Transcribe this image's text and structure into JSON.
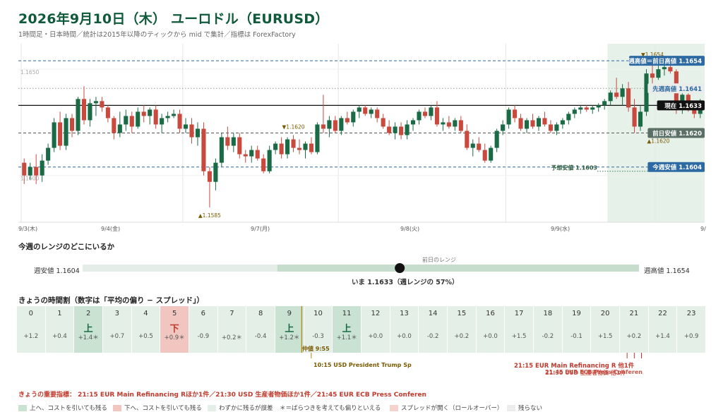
{
  "header": {
    "title": "2026年9月10日（木） ユーロドル（EURUSD）",
    "subtitle": "1時間足・日本時間／統計は2015年以降のティックから mid で集計／指標は ForexFactory"
  },
  "chart_data": {
    "type": "candlestick",
    "ylim": [
      1.1578,
      1.1662
    ],
    "y_tick_labels": [
      {
        "value": 1.165,
        "label": "1.1650"
      },
      {
        "value": 1.16,
        "label": "1.1600"
      }
    ],
    "x_tick_labels": [
      "9/3(木)",
      "9/4(金)",
      "9/7(月)",
      "9/8(火)",
      "9/9(水)",
      "9/"
    ],
    "colors": {
      "up": "#1a6b45",
      "down": "#c84a3e"
    },
    "levels": [
      {
        "label": "週高値＝前日高値 1.1654",
        "value": 1.1654,
        "style": "dashed",
        "color": "#2d6aa3"
      },
      {
        "label": "先週高値 1.1641",
        "value": 1.1641,
        "style": "dotted",
        "color": "#999"
      },
      {
        "label": "現在 1.1633",
        "value": 1.1633,
        "style": "solid",
        "color": "#111"
      },
      {
        "label": "前日安値 1.1620",
        "value": 1.162,
        "style": "dashed",
        "color": "#555"
      },
      {
        "label": "今週安値 1.1604",
        "value": 1.1604,
        "style": "dashed",
        "color": "#2d6aa3"
      }
    ],
    "forecast_low": {
      "label": "予想安値 1.1603",
      "value": 1.1603
    },
    "annotations": [
      {
        "label": "▲1.1585",
        "value": 1.1585,
        "index": 31
      },
      {
        "label": "▼1.1620",
        "value": 1.162,
        "index": 45
      },
      {
        "label": "▼1.1654",
        "value": 1.1654,
        "index": 105
      },
      {
        "label": "▲1.1620",
        "value": 1.162,
        "index": 106
      }
    ],
    "candles": [
      [
        1.1606,
        1.1608,
        1.1596,
        1.16
      ],
      [
        1.16,
        1.1606,
        1.1598,
        1.1604
      ],
      [
        1.1604,
        1.161,
        1.1596,
        1.16
      ],
      [
        1.16,
        1.161,
        1.1597,
        1.1607
      ],
      [
        1.1607,
        1.1615,
        1.1605,
        1.1613
      ],
      [
        1.1613,
        1.1627,
        1.1611,
        1.1625
      ],
      [
        1.1625,
        1.163,
        1.1612,
        1.1614
      ],
      [
        1.1614,
        1.1629,
        1.1612,
        1.1627
      ],
      [
        1.1627,
        1.1629,
        1.1618,
        1.1621
      ],
      [
        1.1621,
        1.1637,
        1.1619,
        1.1636
      ],
      [
        1.1636,
        1.1642,
        1.1624,
        1.1626
      ],
      [
        1.1626,
        1.1636,
        1.1623,
        1.1634
      ],
      [
        1.1634,
        1.1637,
        1.1628,
        1.1635
      ],
      [
        1.1635,
        1.1637,
        1.163,
        1.1632
      ],
      [
        1.1632,
        1.1633,
        1.1625,
        1.1627
      ],
      [
        1.1627,
        1.1628,
        1.1617,
        1.162
      ],
      [
        1.162,
        1.163,
        1.1618,
        1.1624
      ],
      [
        1.1624,
        1.1631,
        1.1621,
        1.1628
      ],
      [
        1.1628,
        1.163,
        1.162,
        1.1623
      ],
      [
        1.1623,
        1.1632,
        1.1622,
        1.163
      ],
      [
        1.163,
        1.1633,
        1.1625,
        1.1628
      ],
      [
        1.1628,
        1.1632,
        1.1624,
        1.1631
      ],
      [
        1.1631,
        1.1633,
        1.1622,
        1.1624
      ],
      [
        1.1624,
        1.1629,
        1.162,
        1.1627
      ],
      [
        1.1627,
        1.163,
        1.1625,
        1.1628
      ],
      [
        1.1628,
        1.1631,
        1.1627,
        1.1629
      ],
      [
        1.1629,
        1.1631,
        1.162,
        1.1622
      ],
      [
        1.1622,
        1.1627,
        1.162,
        1.1624
      ],
      [
        1.1624,
        1.1627,
        1.1615,
        1.1618
      ],
      [
        1.1618,
        1.1625,
        1.1614,
        1.1622
      ],
      [
        1.1622,
        1.1625,
        1.16,
        1.1602
      ],
      [
        1.1602,
        1.1604,
        1.1585,
        1.1597
      ],
      [
        1.1597,
        1.1608,
        1.1593,
        1.1606
      ],
      [
        1.1606,
        1.162,
        1.1604,
        1.1618
      ],
      [
        1.1618,
        1.1623,
        1.1612,
        1.1614
      ],
      [
        1.1614,
        1.162,
        1.1611,
        1.1618
      ],
      [
        1.1618,
        1.162,
        1.1608,
        1.161
      ],
      [
        1.161,
        1.1612,
        1.1606,
        1.1609
      ],
      [
        1.1609,
        1.1614,
        1.1606,
        1.1612
      ],
      [
        1.1612,
        1.1614,
        1.1607,
        1.1608
      ],
      [
        1.1608,
        1.161,
        1.1601,
        1.1602
      ],
      [
        1.1602,
        1.1614,
        1.1601,
        1.1612
      ],
      [
        1.1612,
        1.1616,
        1.161,
        1.1615
      ],
      [
        1.1615,
        1.1618,
        1.1608,
        1.161
      ],
      [
        1.161,
        1.1618,
        1.1608,
        1.1617
      ],
      [
        1.1617,
        1.1619,
        1.1611,
        1.1613
      ],
      [
        1.1613,
        1.1617,
        1.161,
        1.1612
      ],
      [
        1.1612,
        1.1616,
        1.1608,
        1.1615
      ],
      [
        1.1615,
        1.1618,
        1.161,
        1.1611
      ],
      [
        1.1611,
        1.1625,
        1.161,
        1.1624
      ],
      [
        1.1624,
        1.1638,
        1.162,
        1.1622
      ],
      [
        1.1622,
        1.1628,
        1.1618,
        1.1626
      ],
      [
        1.1626,
        1.1628,
        1.162,
        1.1621
      ],
      [
        1.1621,
        1.1628,
        1.1619,
        1.1627
      ],
      [
        1.1627,
        1.163,
        1.1624,
        1.1625
      ],
      [
        1.1625,
        1.1631,
        1.1623,
        1.163
      ],
      [
        1.163,
        1.1633,
        1.1627,
        1.1632
      ],
      [
        1.1632,
        1.1633,
        1.1628,
        1.1629
      ],
      [
        1.1629,
        1.1632,
        1.1627,
        1.1631
      ],
      [
        1.1631,
        1.1632,
        1.1625,
        1.1627
      ],
      [
        1.1627,
        1.1629,
        1.1622,
        1.1623
      ],
      [
        1.1623,
        1.1626,
        1.1619,
        1.162
      ],
      [
        1.162,
        1.1625,
        1.1617,
        1.1623
      ],
      [
        1.1623,
        1.1625,
        1.1617,
        1.1619
      ],
      [
        1.1619,
        1.1626,
        1.1617,
        1.1624
      ],
      [
        1.1624,
        1.1627,
        1.1621,
        1.1626
      ],
      [
        1.1626,
        1.1631,
        1.1624,
        1.163
      ],
      [
        1.163,
        1.1632,
        1.1627,
        1.1628
      ],
      [
        1.1628,
        1.1633,
        1.1626,
        1.1632
      ],
      [
        1.1632,
        1.1635,
        1.1623,
        1.1624
      ],
      [
        1.1624,
        1.1627,
        1.1621,
        1.1625
      ],
      [
        1.1625,
        1.1628,
        1.1622,
        1.1623
      ],
      [
        1.1623,
        1.1627,
        1.1621,
        1.1626
      ],
      [
        1.1626,
        1.1628,
        1.162,
        1.1621
      ],
      [
        1.1621,
        1.1624,
        1.1612,
        1.1613
      ],
      [
        1.1613,
        1.1617,
        1.1609,
        1.1615
      ],
      [
        1.1615,
        1.1618,
        1.1611,
        1.1612
      ],
      [
        1.1612,
        1.1615,
        1.1606,
        1.1607
      ],
      [
        1.1607,
        1.1614,
        1.1606,
        1.1613
      ],
      [
        1.1613,
        1.1622,
        1.1611,
        1.1621
      ],
      [
        1.1621,
        1.1626,
        1.1619,
        1.1624
      ],
      [
        1.1624,
        1.1632,
        1.1622,
        1.1631
      ],
      [
        1.1631,
        1.1633,
        1.1625,
        1.1627
      ],
      [
        1.1627,
        1.1629,
        1.1621,
        1.1622
      ],
      [
        1.1622,
        1.1627,
        1.162,
        1.1626
      ],
      [
        1.1626,
        1.1629,
        1.1622,
        1.1623
      ],
      [
        1.1623,
        1.1628,
        1.1621,
        1.1627
      ],
      [
        1.1627,
        1.163,
        1.1623,
        1.1624
      ],
      [
        1.1624,
        1.1626,
        1.162,
        1.1621
      ],
      [
        1.1621,
        1.1625,
        1.1619,
        1.1624
      ],
      [
        1.1624,
        1.1627,
        1.1622,
        1.1626
      ],
      [
        1.1626,
        1.163,
        1.1624,
        1.1629
      ],
      [
        1.1629,
        1.1632,
        1.1627,
        1.1631
      ],
      [
        1.1631,
        1.1633,
        1.1629,
        1.1632
      ],
      [
        1.1632,
        1.1633,
        1.163,
        1.1631
      ],
      [
        1.1631,
        1.1633,
        1.1629,
        1.1632
      ],
      [
        1.1632,
        1.1634,
        1.163,
        1.1633
      ],
      [
        1.1633,
        1.1636,
        1.1631,
        1.1635
      ],
      [
        1.1635,
        1.164,
        1.1633,
        1.1639
      ],
      [
        1.1639,
        1.1646,
        1.1636,
        1.1637
      ],
      [
        1.1637,
        1.1643,
        1.1633,
        1.1641
      ],
      [
        1.1641,
        1.1644,
        1.163,
        1.1632
      ],
      [
        1.1632,
        1.1636,
        1.162,
        1.1623
      ],
      [
        1.1623,
        1.1633,
        1.1621,
        1.163
      ],
      [
        1.163,
        1.165,
        1.1628,
        1.1648
      ],
      [
        1.1648,
        1.1652,
        1.1643,
        1.1646
      ],
      [
        1.1646,
        1.1652,
        1.1645,
        1.165
      ],
      [
        1.165,
        1.1653,
        1.1647,
        1.1651
      ],
      [
        1.1651,
        1.1654,
        1.1648,
        1.1649
      ],
      [
        1.1649,
        1.165,
        1.1629,
        1.1631
      ],
      [
        1.1631,
        1.1639,
        1.1629,
        1.1638
      ],
      [
        1.1638,
        1.164,
        1.163,
        1.1632
      ],
      [
        1.1632,
        1.1635,
        1.1627,
        1.1629
      ],
      [
        1.1629,
        1.1636,
        1.1627,
        1.1633
      ]
    ]
  },
  "range_section": {
    "title": "今週のレンジのどこにいるか",
    "prev_day_label": "前日のレンジ",
    "week_low_label": "週安値 1.1604",
    "week_high_label": "週高値 1.1654",
    "current_label": "いま 1.1633（週レンジの 57%）",
    "position": 0.57,
    "prev_day_start": 0.35,
    "prev_day_end": 1.0
  },
  "hours_section": {
    "title": "きょうの時間割（数字は「平均の偏り − スプレッド」）",
    "hours": [
      {
        "hour": "0",
        "dir": "",
        "value": "+1.2",
        "cat": "weak"
      },
      {
        "hour": "1",
        "dir": "",
        "value": "+0.4",
        "cat": "weak"
      },
      {
        "hour": "2",
        "dir": "上",
        "value": "+1.4＊",
        "cat": "up"
      },
      {
        "hour": "3",
        "dir": "",
        "value": "+0.7",
        "cat": "weak"
      },
      {
        "hour": "4",
        "dir": "",
        "value": "+0.5",
        "cat": "weak"
      },
      {
        "hour": "5",
        "dir": "下",
        "value": "+0.9＊",
        "cat": "down"
      },
      {
        "hour": "6",
        "dir": "",
        "value": "-0.9",
        "cat": "weak"
      },
      {
        "hour": "7",
        "dir": "",
        "value": "+0.2＊",
        "cat": "weak"
      },
      {
        "hour": "8",
        "dir": "",
        "value": "-0.4",
        "cat": "weak"
      },
      {
        "hour": "9",
        "dir": "上",
        "value": "+1.2＊",
        "cat": "up"
      },
      {
        "hour": "10",
        "dir": "",
        "value": "-0.3",
        "cat": "weak"
      },
      {
        "hour": "11",
        "dir": "上",
        "value": "+1.1＊",
        "cat": "up"
      },
      {
        "hour": "12",
        "dir": "",
        "value": "+0.0",
        "cat": "weak"
      },
      {
        "hour": "13",
        "dir": "",
        "value": "+0.0",
        "cat": "weak"
      },
      {
        "hour": "14",
        "dir": "",
        "value": "-0.2",
        "cat": "weak"
      },
      {
        "hour": "15",
        "dir": "",
        "value": "+0.2",
        "cat": "weak"
      },
      {
        "hour": "16",
        "dir": "",
        "value": "+0.0",
        "cat": "weak"
      },
      {
        "hour": "17",
        "dir": "",
        "value": "+1.5",
        "cat": "weak"
      },
      {
        "hour": "18",
        "dir": "",
        "value": "-0.2",
        "cat": "weak"
      },
      {
        "hour": "19",
        "dir": "",
        "value": "-0.1",
        "cat": "weak"
      },
      {
        "hour": "20",
        "dir": "",
        "value": "+1.5",
        "cat": "weak"
      },
      {
        "hour": "21",
        "dir": "",
        "value": "+0.2",
        "cat": "weak"
      },
      {
        "hour": "22",
        "dir": "",
        "value": "+1.4",
        "cat": "weak"
      },
      {
        "hour": "23",
        "dir": "",
        "value": "+0.9",
        "cat": "weak"
      }
    ],
    "fix_label": "仲値 9:55",
    "fix_hour": 9.9167,
    "event_markers": [
      10.25,
      21.25,
      21.5,
      21.75
    ],
    "event_10": "10:15 USD President Trump Sp",
    "event_21_line1": "21:15 EUR Main Refinancing R 他1件",
    "event_21_line2": "21:30 USD 生産者物価 他1件",
    "event_21_line3": "21:45 EUR ECB Press Conferen"
  },
  "important": {
    "text": "きょうの重要指標： 21:15 EUR Main Refinancing Rほか1件／21:30 USD 生産者物価ほか1件／21:45 EUR ECB Press Conferen"
  },
  "legend": [
    {
      "label": "上へ、コストを引いても残る",
      "color": "#c9e2d1"
    },
    {
      "label": "下へ、コストを引いても残る",
      "color": "#f2c6c0"
    },
    {
      "label": "わずかに残るが誤差",
      "color": "#e4efe8"
    },
    {
      "label": "＊＝ばらつきを考えても偏りといえる",
      "color": ""
    },
    {
      "label": "スプレッドが開く（ロールオーバー）",
      "color": "#f6d2cc"
    },
    {
      "label": "残らない",
      "color": "#ececec"
    }
  ]
}
